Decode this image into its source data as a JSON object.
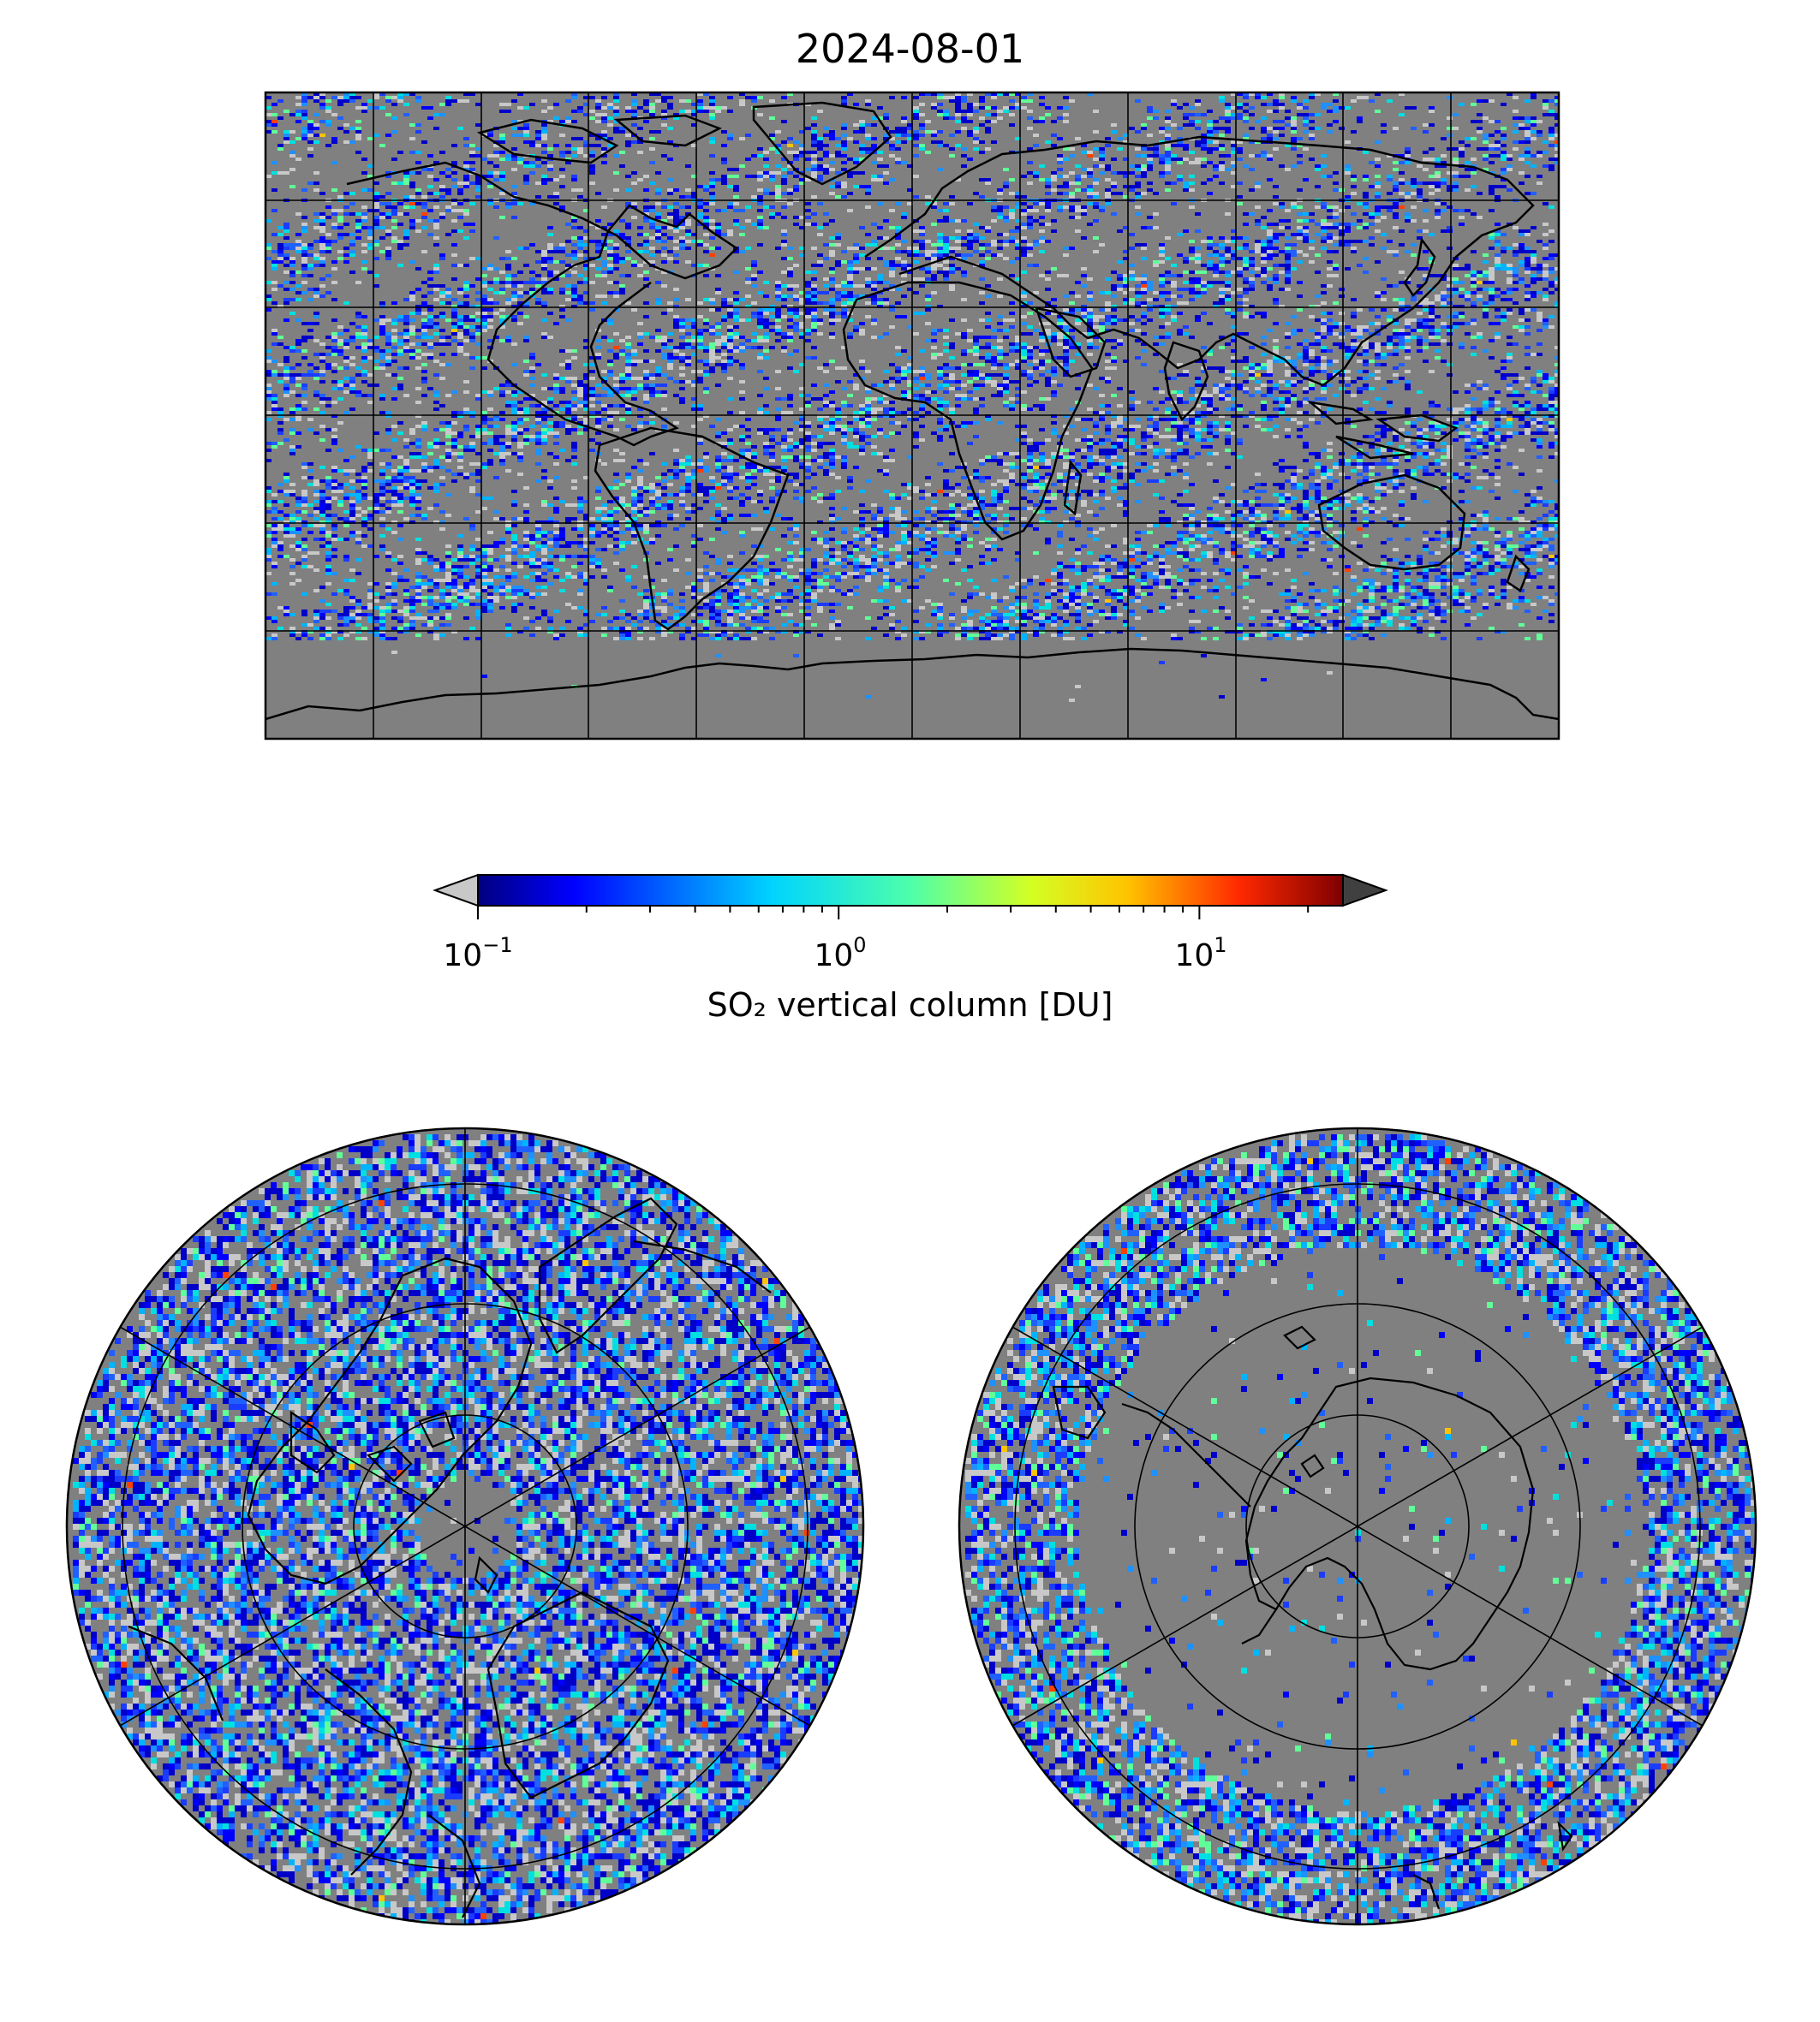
{
  "figure": {
    "title": "2024-08-01",
    "colorbar": {
      "label": "SO₂ vertical column [DU]",
      "scale": "log",
      "range": [
        0.1,
        25
      ],
      "colormap": "jet",
      "extend_low_color": "#c8c8c8",
      "extend_high_color": "#404040",
      "ticks": [
        {
          "base": "10",
          "exp": "−1",
          "value": 0.1
        },
        {
          "base": "10",
          "exp": "0",
          "value": 1
        },
        {
          "base": "10",
          "exp": "1",
          "value": 10
        }
      ]
    },
    "colors": {
      "no_data": "#808080",
      "below_range": "#c8c8c8",
      "coastline": "#000000",
      "gridline": "#000000"
    },
    "maps": [
      {
        "name": "global",
        "projection": "plate-carree",
        "lon_range": [
          -180,
          180
        ],
        "lat_range": [
          -90,
          90
        ],
        "gridlines_lon_step": 30,
        "gridlines_lat_step": 30
      },
      {
        "name": "north-polar",
        "projection": "north-polar-stereographic",
        "gridlines": true
      },
      {
        "name": "south-polar",
        "projection": "south-polar-stereographic",
        "gridlines": true
      }
    ]
  }
}
